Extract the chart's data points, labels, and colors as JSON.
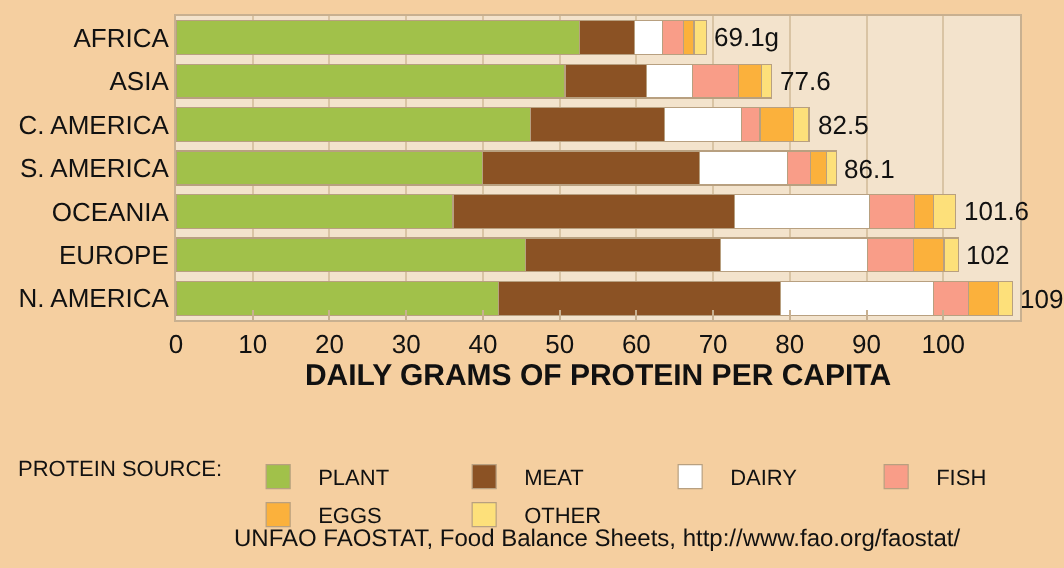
{
  "chart_data": {
    "type": "bar",
    "orientation": "horizontal",
    "stacked": true,
    "xlabel": "DAILY GRAMS OF PROTEIN PER CAPITA",
    "categories": [
      "AFRICA",
      "ASIA",
      "C. AMERICA",
      "S. AMERICA",
      "OCEANIA",
      "EUROPE",
      "N. AMERICA"
    ],
    "series": [
      {
        "name": "PLANT",
        "color": "#a1c14a",
        "values": [
          52.6,
          50.7,
          46.2,
          39.9,
          36.1,
          45.5,
          42.0
        ]
      },
      {
        "name": "MEAT",
        "color": "#8b5224",
        "values": [
          7.2,
          10.6,
          17.5,
          28.3,
          36.7,
          25.5,
          36.8
        ]
      },
      {
        "name": "DAIRY",
        "color": "#ffffff",
        "values": [
          3.6,
          6.0,
          10.0,
          11.5,
          17.6,
          19.1,
          19.9
        ]
      },
      {
        "name": "FISH",
        "color": "#f99d88",
        "values": [
          2.7,
          6.0,
          2.4,
          3.0,
          5.9,
          6.0,
          4.6
        ]
      },
      {
        "name": "EGGS",
        "color": "#fbb13c",
        "values": [
          1.4,
          3.0,
          4.4,
          2.1,
          2.4,
          4.0,
          3.9
        ]
      },
      {
        "name": "OTHER",
        "color": "#fde07a",
        "values": [
          1.6,
          1.3,
          2.0,
          1.3,
          2.9,
          1.9,
          1.8
        ]
      }
    ],
    "totals": [
      "69.1g",
      "77.6",
      "82.5",
      "86.1",
      "101.6",
      "102",
      "109"
    ],
    "xlim": [
      0,
      110
    ],
    "xticks": [
      0,
      10,
      20,
      30,
      40,
      50,
      60,
      70,
      80,
      90,
      100
    ],
    "grid": "x",
    "legend": "bottom",
    "legend_title": "PROTEIN SOURCE:",
    "annotations": [
      "UNFAO FAOSTAT, Food Balance Sheets, http://www.fao.org/faostat/"
    ]
  }
}
